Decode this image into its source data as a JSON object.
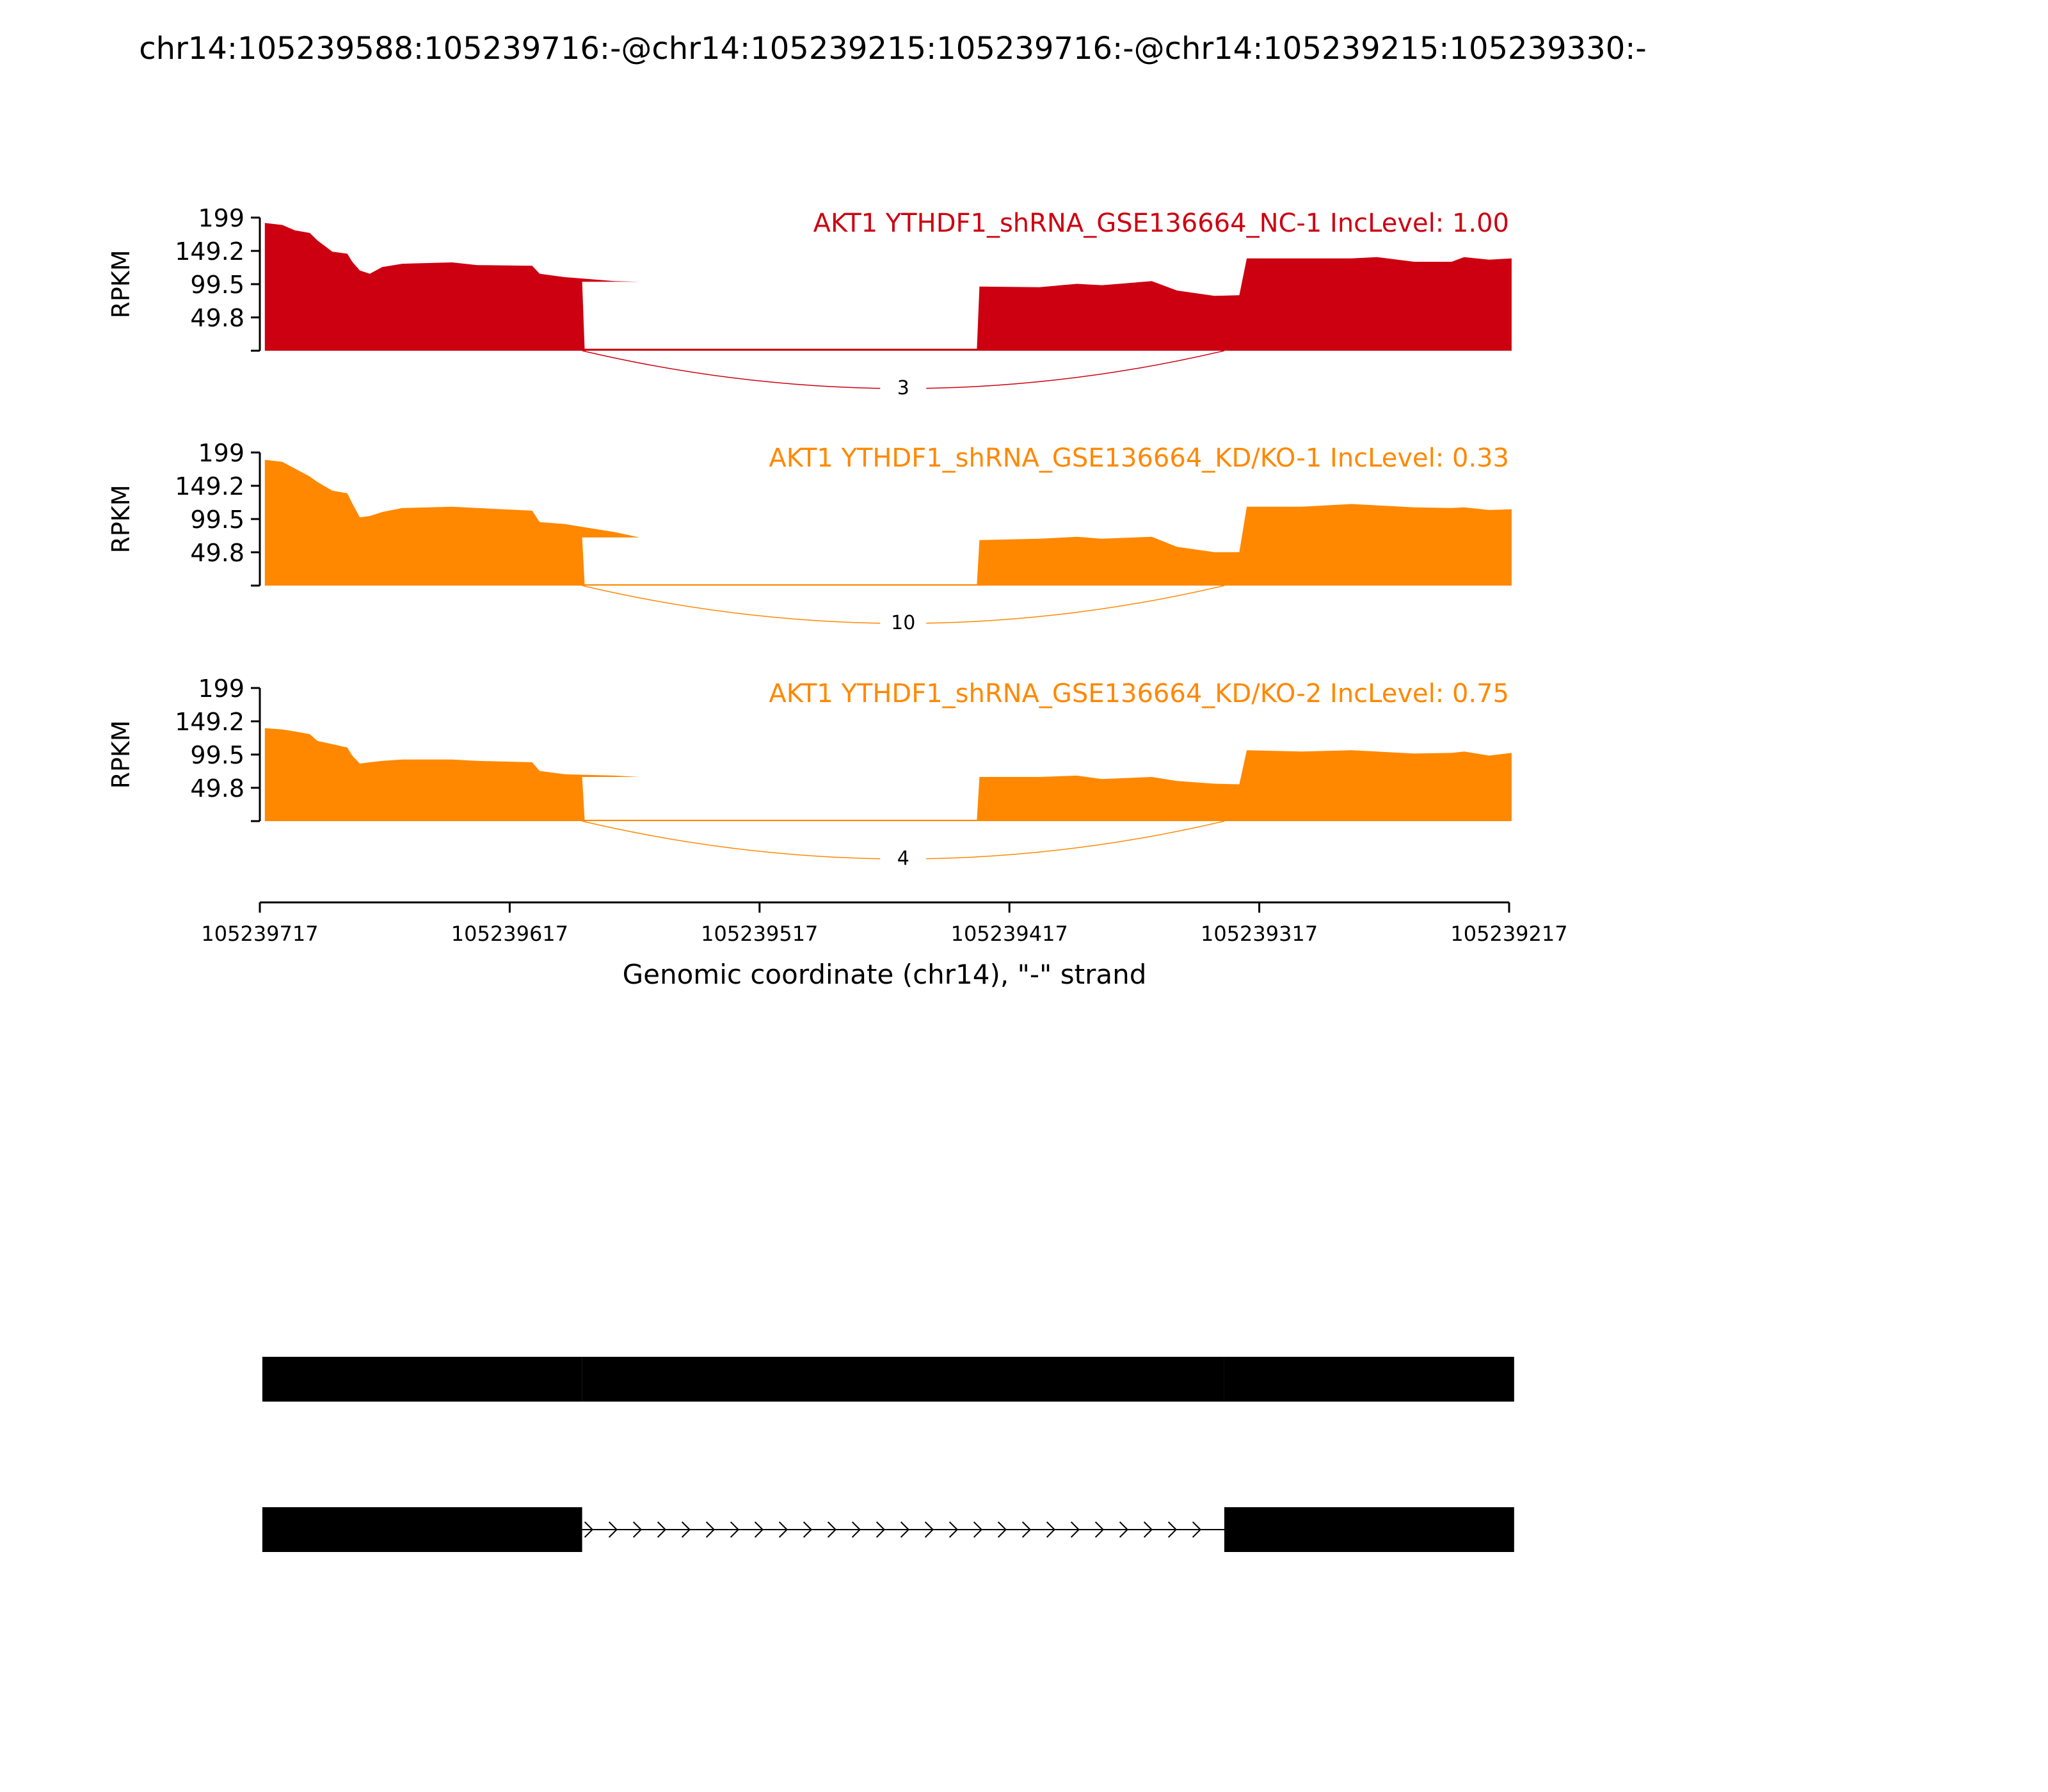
{
  "title": "chr14:105239588:105239716:-@chr14:105239215:105239716:-@chr14:105239215:105239330:-",
  "chart_data": {
    "type": "area",
    "x_axis": {
      "label": "Genomic coordinate (chr14), \"-\" strand",
      "range": [
        105239717,
        105239217
      ],
      "ticks": [
        {
          "value": 105239717,
          "label": "105239717"
        },
        {
          "value": 105239617,
          "label": "105239617"
        },
        {
          "value": 105239517,
          "label": "105239517"
        },
        {
          "value": 105239417,
          "label": "105239417"
        },
        {
          "value": 105239317,
          "label": "105239317"
        },
        {
          "value": 105239217,
          "label": "105239217"
        }
      ]
    },
    "panels": [
      {
        "title": "AKT1 YTHDF1_shRNA_GSE136664_NC-1 IncLevel: 1.00",
        "color": "#cc0011",
        "ylabel": "RPKM",
        "ylim": [
          0,
          199
        ],
        "yticks": [
          {
            "value": 199,
            "label": "199"
          },
          {
            "value": 149.2,
            "label": "149.2"
          },
          {
            "value": 99.5,
            "label": "99.5"
          },
          {
            "value": 49.8,
            "label": "49.8"
          }
        ],
        "coverage": [
          [
            105239715,
            191
          ],
          [
            105239708,
            188
          ],
          [
            105239703,
            180
          ],
          [
            105239697,
            176
          ],
          [
            105239694,
            165
          ],
          [
            105239688,
            148
          ],
          [
            105239682,
            145
          ],
          [
            105239680,
            133
          ],
          [
            105239677,
            120
          ],
          [
            105239673,
            115
          ],
          [
            105239668,
            125
          ],
          [
            105239660,
            130
          ],
          [
            105239640,
            132
          ],
          [
            105239630,
            128
          ],
          [
            105239608,
            127
          ],
          [
            105239605,
            115
          ],
          [
            105239595,
            110
          ],
          [
            105239575,
            104
          ],
          [
            105239565,
            103
          ],
          [
            105239588,
            103
          ],
          [
            105239587,
            3
          ],
          [
            105239430,
            3
          ],
          [
            105239429,
            96
          ],
          [
            105239405,
            95
          ],
          [
            105239390,
            100
          ],
          [
            105239380,
            98
          ],
          [
            105239360,
            104
          ],
          [
            105239350,
            90
          ],
          [
            105239335,
            82
          ],
          [
            105239325,
            83
          ],
          [
            105239322,
            138
          ],
          [
            105239300,
            138
          ],
          [
            105239280,
            138
          ],
          [
            105239270,
            140
          ],
          [
            105239255,
            133
          ],
          [
            105239240,
            133
          ],
          [
            105239235,
            140
          ],
          [
            105239225,
            136
          ],
          [
            105239216,
            138
          ]
        ],
        "junction": {
          "from": 105239588,
          "to": 105239331,
          "count": "3"
        }
      },
      {
        "title": "AKT1 YTHDF1_shRNA_GSE136664_KD/KO-1 IncLevel: 0.33",
        "color": "#ff8800",
        "ylabel": "RPKM",
        "ylim": [
          0,
          199
        ],
        "yticks": [
          {
            "value": 199,
            "label": "199"
          },
          {
            "value": 149.2,
            "label": "149.2"
          },
          {
            "value": 99.5,
            "label": "99.5"
          },
          {
            "value": 49.8,
            "label": "49.8"
          }
        ],
        "coverage": [
          [
            105239715,
            188
          ],
          [
            105239708,
            185
          ],
          [
            105239703,
            175
          ],
          [
            105239697,
            163
          ],
          [
            105239694,
            155
          ],
          [
            105239688,
            142
          ],
          [
            105239682,
            138
          ],
          [
            105239680,
            123
          ],
          [
            105239677,
            102
          ],
          [
            105239673,
            104
          ],
          [
            105239668,
            110
          ],
          [
            105239660,
            116
          ],
          [
            105239640,
            118
          ],
          [
            105239630,
            116
          ],
          [
            105239608,
            112
          ],
          [
            105239605,
            95
          ],
          [
            105239595,
            92
          ],
          [
            105239575,
            80
          ],
          [
            105239565,
            72
          ],
          [
            105239588,
            72
          ],
          [
            105239587,
            2
          ],
          [
            105239430,
            2
          ],
          [
            105239429,
            68
          ],
          [
            105239405,
            70
          ],
          [
            105239390,
            73
          ],
          [
            105239380,
            70
          ],
          [
            105239360,
            73
          ],
          [
            105239350,
            58
          ],
          [
            105239335,
            50
          ],
          [
            105239325,
            50
          ],
          [
            105239322,
            118
          ],
          [
            105239300,
            118
          ],
          [
            105239280,
            122
          ],
          [
            105239270,
            120
          ],
          [
            105239255,
            117
          ],
          [
            105239240,
            116
          ],
          [
            105239235,
            117
          ],
          [
            105239225,
            113
          ],
          [
            105239216,
            114
          ]
        ],
        "junction": {
          "from": 105239588,
          "to": 105239331,
          "count": "10"
        }
      },
      {
        "title": "AKT1 YTHDF1_shRNA_GSE136664_KD/KO-2 IncLevel: 0.75",
        "color": "#ff8800",
        "ylabel": "RPKM",
        "ylim": [
          0,
          199
        ],
        "yticks": [
          {
            "value": 199,
            "label": "199"
          },
          {
            "value": 149.2,
            "label": "149.2"
          },
          {
            "value": 99.5,
            "label": "99.5"
          },
          {
            "value": 49.8,
            "label": "49.8"
          }
        ],
        "coverage": [
          [
            105239715,
            139
          ],
          [
            105239708,
            137
          ],
          [
            105239703,
            134
          ],
          [
            105239697,
            130
          ],
          [
            105239694,
            120
          ],
          [
            105239688,
            115
          ],
          [
            105239682,
            110
          ],
          [
            105239680,
            98
          ],
          [
            105239677,
            86
          ],
          [
            105239673,
            88
          ],
          [
            105239668,
            90
          ],
          [
            105239660,
            92
          ],
          [
            105239640,
            92
          ],
          [
            105239630,
            90
          ],
          [
            105239608,
            88
          ],
          [
            105239605,
            75
          ],
          [
            105239595,
            70
          ],
          [
            105239575,
            68
          ],
          [
            105239565,
            66
          ],
          [
            105239588,
            66
          ],
          [
            105239587,
            2
          ],
          [
            105239430,
            2
          ],
          [
            105239429,
            66
          ],
          [
            105239405,
            66
          ],
          [
            105239390,
            68
          ],
          [
            105239380,
            63
          ],
          [
            105239360,
            66
          ],
          [
            105239350,
            60
          ],
          [
            105239335,
            56
          ],
          [
            105239325,
            55
          ],
          [
            105239322,
            106
          ],
          [
            105239300,
            104
          ],
          [
            105239280,
            106
          ],
          [
            105239270,
            104
          ],
          [
            105239255,
            101
          ],
          [
            105239240,
            102
          ],
          [
            105239235,
            104
          ],
          [
            105239225,
            98
          ],
          [
            105239216,
            102
          ]
        ],
        "junction": {
          "from": 105239588,
          "to": 105239331,
          "count": "4"
        }
      }
    ],
    "transcripts": [
      {
        "exons": [
          [
            105239716,
            105239588
          ],
          [
            105239588,
            105239331
          ],
          [
            105239331,
            105239215
          ]
        ],
        "introns": []
      },
      {
        "exons": [
          [
            105239716,
            105239588
          ],
          [
            105239331,
            105239215
          ]
        ],
        "introns": [
          [
            105239588,
            105239331
          ]
        ],
        "strand": "-"
      }
    ]
  }
}
